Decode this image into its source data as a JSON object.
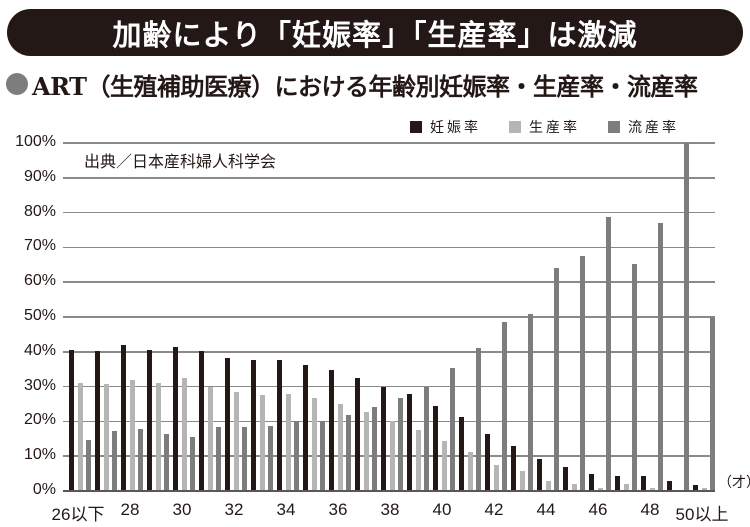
{
  "banner": {
    "title": "加齢により「妊娠率」「生産率」は激減"
  },
  "subtitle": {
    "bullet": "●",
    "text": "ART（生殖補助医療）における年齢別妊娠率・生産率・流産率"
  },
  "source": "出典／日本産科婦人科学会",
  "unit": "（才）",
  "colors": {
    "pregnancy": "#231815",
    "live_birth": "#b5b5b6",
    "miscarriage": "#7d7d7d",
    "banner_bg": "#231815"
  },
  "legend": [
    {
      "label": "妊娠率",
      "color": "#231815"
    },
    {
      "label": "生産率",
      "color": "#b5b5b6"
    },
    {
      "label": "流産率",
      "color": "#7d7d7d"
    }
  ],
  "chart_data": {
    "type": "bar",
    "title": "ART（生殖補助医療）における年齢別妊娠率・生産率・流産率",
    "subtitle": "加齢により「妊娠率」「生産率」は激減",
    "source": "出典／日本産科婦人科学会",
    "xlabel": "（才）",
    "ylabel": "",
    "ylim": [
      0,
      100
    ],
    "yticks": [
      "0%",
      "10%",
      "20%",
      "30%",
      "40%",
      "50%",
      "60%",
      "70%",
      "80%",
      "90%",
      "100%"
    ],
    "grid": true,
    "legend_position": "top-right",
    "categories": [
      "26以下",
      "27",
      "28",
      "29",
      "30",
      "31",
      "32",
      "33",
      "34",
      "35",
      "36",
      "37",
      "38",
      "39",
      "40",
      "41",
      "42",
      "43",
      "44",
      "45",
      "46",
      "47",
      "48",
      "49",
      "50以上"
    ],
    "xtick_labels": [
      "26以下",
      "28",
      "30",
      "32",
      "34",
      "36",
      "38",
      "40",
      "42",
      "44",
      "46",
      "48",
      "50以上"
    ],
    "series": [
      {
        "name": "妊娠率",
        "values": [
          40.5,
          40.2,
          42.0,
          40.6,
          41.4,
          40.1,
          38.3,
          37.6,
          37.6,
          36.1,
          34.9,
          32.6,
          30.0,
          27.8,
          24.3,
          21.3,
          16.3,
          12.8,
          9.3,
          6.8,
          4.8,
          4.4,
          4.2,
          2.8,
          1.7
        ]
      },
      {
        "name": "生産率",
        "values": [
          31.1,
          30.7,
          31.8,
          31.1,
          32.6,
          30.0,
          28.4,
          27.6,
          28.0,
          26.6,
          24.9,
          22.7,
          20.1,
          17.6,
          14.4,
          11.2,
          7.4,
          5.7,
          2.9,
          2.1,
          1.0,
          2.0,
          1.0,
          0.3,
          1.0
        ]
      },
      {
        "name": "流産率",
        "values": [
          14.6,
          17.2,
          17.8,
          16.3,
          15.4,
          18.4,
          18.5,
          18.8,
          20.1,
          20.1,
          21.9,
          24.0,
          26.6,
          30.0,
          35.3,
          41.0,
          48.7,
          50.9,
          64.0,
          67.6,
          78.6,
          65.3,
          77.1,
          100.0,
          50.0
        ]
      }
    ]
  }
}
